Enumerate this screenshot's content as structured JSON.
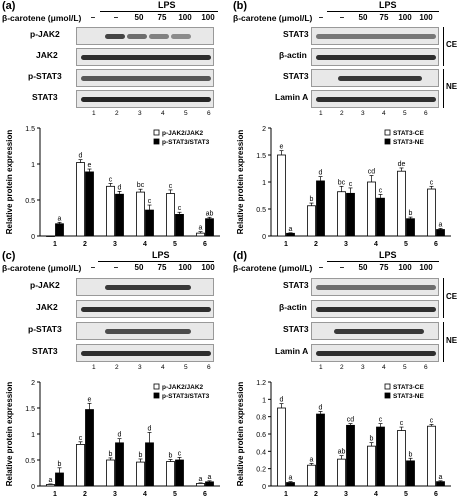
{
  "figure": {
    "treatment_label": "β-carotene (μmol/L)",
    "lps_label": "LPS",
    "columns": [
      "–",
      "–",
      "50",
      "75",
      "100",
      "100"
    ],
    "lanes": [
      "1",
      "2",
      "3",
      "4",
      "5",
      "6"
    ],
    "section_labels": {
      "ce": "CE",
      "ne": "NE"
    }
  },
  "panels": [
    {
      "id": "a",
      "label": "(a)",
      "blots": [
        "p-JAK2",
        "JAK2",
        "p-STAT3",
        "STAT3"
      ]
    },
    {
      "id": "b",
      "label": "(b)",
      "blots": [
        "STAT3",
        "β-actin",
        "STAT3",
        "Lamin A"
      ]
    },
    {
      "id": "c",
      "label": "(c)",
      "blots": [
        "p-JAK2",
        "JAK2",
        "p-STAT3",
        "STAT3"
      ]
    },
    {
      "id": "d",
      "label": "(d)",
      "blots": [
        "STAT3",
        "β-actin",
        "STAT3",
        "Lamin A"
      ]
    }
  ],
  "chart_data": [
    {
      "panel": "a",
      "type": "bar",
      "ylabel": "Relative protein  expression",
      "categories": [
        "1",
        "2",
        "3",
        "4",
        "5",
        "6"
      ],
      "ylim": [
        0,
        1.5
      ],
      "yticks": [
        "0",
        "0.5",
        "1",
        "1.5"
      ],
      "series": [
        {
          "name": "p-JAK2/JAK2",
          "fill": "#ffffff",
          "values": [
            0.0,
            1.02,
            0.69,
            0.61,
            0.59,
            0.04
          ],
          "err": [
            0,
            0.04,
            0.04,
            0.04,
            0.05,
            0.02
          ],
          "letters": [
            "",
            "d",
            "c",
            "bc",
            "c",
            "a"
          ]
        },
        {
          "name": "p-STAT3/STAT3",
          "fill": "#000000",
          "values": [
            0.17,
            0.89,
            0.58,
            0.36,
            0.3,
            0.24
          ],
          "err": [
            0.02,
            0.04,
            0.04,
            0.07,
            0.03,
            0.02
          ],
          "letters": [
            "a",
            "e",
            "d",
            "c",
            "c",
            "ab"
          ]
        }
      ]
    },
    {
      "panel": "b",
      "type": "bar",
      "ylabel": "Relative protein  expression",
      "categories": [
        "1",
        "2",
        "3",
        "4",
        "5",
        "6"
      ],
      "ylim": [
        0,
        2.0
      ],
      "yticks": [
        "0",
        "0.5",
        "1",
        "1.5",
        "2"
      ],
      "series": [
        {
          "name": "STAT3-CE",
          "fill": "#ffffff",
          "values": [
            1.5,
            0.56,
            0.82,
            1.0,
            1.2,
            0.87
          ],
          "err": [
            0.08,
            0.05,
            0.1,
            0.12,
            0.06,
            0.05
          ],
          "letters": [
            "e",
            "b",
            "bc",
            "cd",
            "de",
            "c"
          ]
        },
        {
          "name": "STAT3-NE",
          "fill": "#000000",
          "values": [
            0.05,
            1.02,
            0.79,
            0.7,
            0.32,
            0.12
          ],
          "err": [
            0.01,
            0.08,
            0.1,
            0.07,
            0.03,
            0.02
          ],
          "letters": [
            "a",
            "d",
            "c",
            "c",
            "b",
            "a"
          ]
        }
      ]
    },
    {
      "panel": "c",
      "type": "bar",
      "ylabel": "Relative protein  expression",
      "categories": [
        "1",
        "2",
        "3",
        "4",
        "5",
        "6"
      ],
      "ylim": [
        0,
        2.0
      ],
      "yticks": [
        "0",
        "0.5",
        "1",
        "1.5",
        "2"
      ],
      "series": [
        {
          "name": "p-JAK2/JAK2",
          "fill": "#ffffff",
          "values": [
            0.03,
            0.8,
            0.5,
            0.46,
            0.47,
            0.05
          ],
          "err": [
            0.01,
            0.05,
            0.04,
            0.06,
            0.04,
            0.01
          ],
          "letters": [
            "a",
            "c",
            "b",
            "b",
            "b",
            "a"
          ]
        },
        {
          "name": "p-STAT3/STAT3",
          "fill": "#000000",
          "values": [
            0.25,
            1.47,
            0.83,
            0.83,
            0.5,
            0.08
          ],
          "err": [
            0.1,
            0.12,
            0.08,
            0.2,
            0.05,
            0.02
          ],
          "letters": [
            "b",
            "e",
            "d",
            "d",
            "c",
            "a"
          ]
        }
      ]
    },
    {
      "panel": "d",
      "type": "bar",
      "ylabel": "Relative protein  expression",
      "categories": [
        "1",
        "2",
        "3",
        "4",
        "5",
        "6"
      ],
      "ylim": [
        0,
        1.2
      ],
      "yticks": [
        "0",
        "0.2",
        "0.4",
        "0.6",
        "0.8",
        "1",
        "1.2"
      ],
      "series": [
        {
          "name": "STAT3-CE",
          "fill": "#ffffff",
          "values": [
            0.9,
            0.24,
            0.31,
            0.46,
            0.64,
            0.69
          ],
          "err": [
            0.05,
            0.02,
            0.04,
            0.04,
            0.04,
            0.02
          ],
          "letters": [
            "d",
            "a",
            "ab",
            "b",
            "c",
            "c"
          ]
        },
        {
          "name": "STAT3-NE",
          "fill": "#000000",
          "values": [
            0.04,
            0.83,
            0.7,
            0.68,
            0.29,
            0.05
          ],
          "err": [
            0.01,
            0.03,
            0.02,
            0.04,
            0.03,
            0.01
          ],
          "letters": [
            "a",
            "d",
            "cd",
            "c",
            "b",
            "a"
          ]
        }
      ]
    }
  ]
}
